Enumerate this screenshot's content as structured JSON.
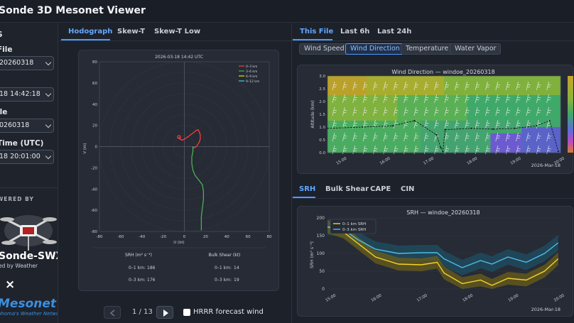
{
  "app": {
    "title": "Sonde 3D Mesonet Viewer"
  },
  "sidebar": {
    "section_header": "S",
    "fields": [
      {
        "label": "File",
        "value": "20260318"
      },
      {
        "label": ")",
        "value": "18 14:42:18"
      },
      {
        "label": "ile",
        "value": "0260318"
      },
      {
        "label": "Time (UTC)",
        "value": "18 20:01:00"
      }
    ],
    "powered_by": "WERED BY",
    "brand_name": "Sonde-SWX",
    "brand_sub": "ed by Weather",
    "partner_symbol": "×",
    "mesonet_name": "Mesonet",
    "mesonet_sub": "ahoma's Weather Network"
  },
  "left_tabs": [
    {
      "label": "Hodograph",
      "active": true
    },
    {
      "label": "Skew-T",
      "active": false
    },
    {
      "label": "Skew-T Low",
      "active": false
    }
  ],
  "right_tabs": [
    {
      "label": "This File",
      "active": true
    },
    {
      "label": "Last 6h",
      "active": false
    },
    {
      "label": "Last 24h",
      "active": false
    }
  ],
  "variable_chips": [
    {
      "label": "Wind Speed",
      "active": false
    },
    {
      "label": "Wind Direction",
      "active": true
    },
    {
      "label": "Temperature",
      "active": false
    },
    {
      "label": "Water Vapor",
      "active": false
    }
  ],
  "bottom_tabs": [
    {
      "label": "SRH",
      "active": true
    },
    {
      "label": "Bulk Shear",
      "active": false
    },
    {
      "label": "CAPE",
      "active": false
    },
    {
      "label": "CIN",
      "active": false
    }
  ],
  "navigation": {
    "page_indicator": "1 / 13",
    "prev_icon": "chevron-left-icon",
    "next_icon": "play-icon",
    "hrrr_label": "HRRR forecast wind",
    "hrrr_checked": false
  },
  "colors": {
    "accent": "#4c9cff",
    "srh01": "#f2d42c",
    "srh03": "#4bbde8",
    "layer_0_3": "#ff3b3b",
    "layer_3_6": "#4caf50",
    "layer_6_9": "#e6e600",
    "layer_9_12": "#41d3d3"
  },
  "chart_data": [
    {
      "type": "hodograph",
      "title": "2026-03-18 14:42 UTC",
      "xlabel": "U (kt)",
      "ylabel": "V (kt)",
      "xlim": [
        -80,
        80
      ],
      "ylim": [
        -80,
        80
      ],
      "x_ticks": [
        -80,
        -60,
        -40,
        -20,
        0,
        20,
        40,
        60,
        80
      ],
      "y_ticks": [
        -80,
        -60,
        -40,
        -20,
        0,
        20,
        40,
        60,
        80
      ],
      "rings": [
        10,
        20,
        30,
        40,
        50,
        60,
        70,
        80
      ],
      "legend": [
        "0–3 km",
        "3–6 km",
        "6–9 km",
        "9–12 km"
      ],
      "series": [
        {
          "name": "0–3 km",
          "points": [
            [
              -5,
              9
            ],
            [
              -4,
              7
            ],
            [
              -2,
              6
            ],
            [
              0,
              7
            ],
            [
              3,
              9
            ],
            [
              7,
              12
            ],
            [
              11,
              15
            ],
            [
              13,
              16
            ],
            [
              14,
              14
            ],
            [
              15,
              11
            ],
            [
              15,
              7
            ],
            [
              14,
              4
            ],
            [
              12,
              1
            ],
            [
              10,
              -1
            ],
            [
              9,
              -1
            ],
            [
              8,
              0
            ]
          ]
        },
        {
          "name": "3–6 km",
          "points": [
            [
              8,
              0
            ],
            [
              8,
              -5
            ],
            [
              7,
              -10
            ],
            [
              7,
              -16
            ],
            [
              8,
              -22
            ],
            [
              10,
              -27
            ],
            [
              14,
              -32
            ],
            [
              17,
              -36
            ],
            [
              18,
              -42
            ],
            [
              18,
              -50
            ],
            [
              17,
              -58
            ],
            [
              16,
              -66
            ],
            [
              16,
              -72
            ],
            [
              16,
              -79
            ]
          ]
        }
      ],
      "stats_headers": [
        "SRH (m² s⁻²)",
        "Bulk Shear (kt)"
      ],
      "stats_rows": [
        {
          "srh_label": "0–1 km:",
          "srh_value": "186",
          "shear_label": "0–1 km:",
          "shear_value": "14"
        },
        {
          "srh_label": "0–3 km:",
          "srh_value": "176",
          "shear_label": "0–3 km:",
          "shear_value": "19"
        }
      ]
    },
    {
      "type": "heatmap",
      "title": "Wind Direction — windoe_20260318",
      "ylabel": "Altitude (km)",
      "ylim": [
        0,
        3
      ],
      "y_ticks": [
        "0.0",
        "0.5",
        "1.0",
        "1.5",
        "2.0",
        "2.5",
        "3.0"
      ],
      "x_ticks": [
        "15:00",
        "16:00",
        "17:00",
        "18:00",
        "19:00",
        "20:00"
      ],
      "x_values": [
        15,
        16,
        17,
        18,
        19,
        20
      ],
      "xlim": [
        14.7,
        20.05
      ],
      "date_label": "2026-Mar-18",
      "boundary_line": {
        "x": [
          14.7,
          15.5,
          16.2,
          16.7,
          17.2,
          17.3,
          17.35,
          17.4,
          18.0,
          18.5,
          19.0,
          19.5,
          19.8,
          20.0
        ],
        "y": [
          0.95,
          1.0,
          1.05,
          1.25,
          0.7,
          0.2,
          0.05,
          0.9,
          0.95,
          0.92,
          0.95,
          1.05,
          1.25,
          0.05
        ]
      }
    },
    {
      "type": "line",
      "title": "SRH — windoe_20260318",
      "ylabel": "SRH (m² s⁻¹)",
      "ylim": [
        0,
        200
      ],
      "y_ticks": [
        0,
        50,
        100,
        150,
        200
      ],
      "x_ticks": [
        "15:00",
        "16:00",
        "17:00",
        "18:00",
        "19:00",
        "20:00"
      ],
      "x_values": [
        15,
        16,
        17,
        18,
        19,
        20
      ],
      "xlim": [
        14.95,
        20.05
      ],
      "date_label": "2026-Mar-18",
      "series": [
        {
          "name": "0–1 km SRH",
          "x": [
            14.95,
            15.3,
            15.6,
            16.0,
            16.5,
            17.0,
            17.35,
            17.5,
            17.9,
            18.3,
            18.55,
            18.9,
            19.3,
            19.7,
            20.0
          ],
          "y": [
            175,
            160,
            130,
            90,
            70,
            68,
            75,
            45,
            15,
            25,
            10,
            30,
            25,
            50,
            85
          ]
        },
        {
          "name": "0–3 km SRH",
          "x": [
            14.95,
            15.3,
            15.6,
            16.0,
            16.5,
            17.0,
            17.35,
            17.5,
            17.9,
            18.3,
            18.55,
            18.9,
            19.3,
            19.7,
            20.0
          ],
          "y": [
            175,
            168,
            140,
            112,
            100,
            102,
            102,
            85,
            60,
            80,
            70,
            90,
            75,
            100,
            130
          ]
        }
      ]
    }
  ]
}
